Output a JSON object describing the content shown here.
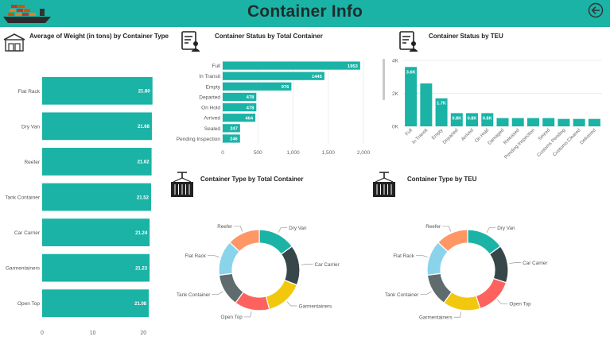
{
  "header": {
    "title": "Container Info",
    "accent": "#1ab3a6",
    "logo_icon": "cargo-ship-icon",
    "back_icon": "back-arrow-icon"
  },
  "panels": {
    "weight": {
      "title": "Average of Weight (in tons) by Container Type",
      "icon": "warehouse-icon"
    },
    "status_total": {
      "title": "Container Status by Total Container",
      "icon": "clipboard-user-icon"
    },
    "status_teu": {
      "title": "Container Status by TEU",
      "icon": "clipboard-user-icon"
    },
    "type_total": {
      "title": "Container Type by Total Container",
      "icon": "crane-container-icon"
    },
    "type_teu": {
      "title": "Container Type by TEU",
      "icon": "crane-container-icon"
    }
  },
  "chart_data": [
    {
      "id": "weight",
      "type": "bar",
      "orientation": "horizontal",
      "title": "Average of Weight (in tons) by Container Type",
      "categories": [
        "Flat Rack",
        "Dry Van",
        "Reefer",
        "Tank Container",
        "Car Carrier",
        "Garmentainers",
        "Open Top"
      ],
      "values": [
        21.8,
        21.68,
        21.62,
        21.52,
        21.24,
        21.23,
        21.08
      ],
      "value_labels": [
        "21.80",
        "21.68",
        "21.62",
        "21.52",
        "21.24",
        "21.23",
        "21.08"
      ],
      "xlim": [
        0,
        22
      ],
      "xticks": [
        0,
        10,
        20
      ],
      "xtick_labels": [
        "0",
        "10",
        "20"
      ],
      "color": "#1ab3a6"
    },
    {
      "id": "status_total",
      "type": "bar",
      "orientation": "horizontal",
      "title": "Container Status by Total Container",
      "categories": [
        "Full",
        "In Transit",
        "Empty",
        "Departed",
        "On Hold",
        "Arrived",
        "Sealed",
        "Pending Inspection"
      ],
      "values": [
        1953,
        1445,
        976,
        478,
        478,
        464,
        247,
        246
      ],
      "value_labels": [
        "1953",
        "1445",
        "976",
        "478",
        "478",
        "464",
        "247",
        "246"
      ],
      "xlim": [
        0,
        2000
      ],
      "xticks": [
        0,
        500,
        1000,
        1500,
        2000
      ],
      "xtick_labels": [
        "0",
        "500",
        "1,000",
        "1,500",
        "2,000"
      ],
      "color": "#1ab3a6"
    },
    {
      "id": "status_teu",
      "type": "bar",
      "orientation": "vertical",
      "title": "Container Status by TEU",
      "categories": [
        "Full",
        "In Transit",
        "Empty",
        "Departed",
        "Arrived",
        "On Hold",
        "Damaged",
        "Released",
        "Pending Inspection",
        "Seized",
        "Customs Pending",
        "Customs Cleared",
        "Delivered"
      ],
      "values": [
        3.6,
        2.6,
        1.7,
        0.8,
        0.8,
        0.8,
        0.5,
        0.5,
        0.5,
        0.5,
        0.45,
        0.45,
        0.45
      ],
      "value_labels": [
        "3.6K",
        "",
        "1.7K",
        "0.8K",
        "0.8K",
        "0.8K",
        "",
        "",
        "",
        "",
        "",
        "",
        ""
      ],
      "ylim": [
        0,
        4
      ],
      "yticks": [
        0,
        2,
        4
      ],
      "ytick_labels": [
        "0K",
        "2K",
        "4K"
      ],
      "color": "#1ab3a6"
    },
    {
      "id": "type_total",
      "type": "pie",
      "donut": true,
      "title": "Container Type by Total Container",
      "labels": [
        "Dry Van",
        "Car Carrier",
        "Garmentainers",
        "Open Top",
        "Tank Container",
        "Flat Rack",
        "Reefer"
      ],
      "values": [
        15,
        16,
        15,
        14,
        13,
        14,
        13
      ],
      "colors": [
        "#1ab3a6",
        "#374649",
        "#f2c80f",
        "#fd625e",
        "#5f6b6d",
        "#8ad4eb",
        "#fe9666"
      ]
    },
    {
      "id": "type_teu",
      "type": "pie",
      "donut": true,
      "title": "Container Type by TEU",
      "labels": [
        "Dry Van",
        "Car Carrier",
        "Open Top",
        "Garmentainers",
        "Tank Container",
        "Flat Rack",
        "Reefer"
      ],
      "values": [
        15,
        15,
        15,
        15,
        13,
        14,
        13
      ],
      "colors": [
        "#1ab3a6",
        "#374649",
        "#fd625e",
        "#f2c80f",
        "#5f6b6d",
        "#8ad4eb",
        "#fe9666"
      ]
    }
  ]
}
